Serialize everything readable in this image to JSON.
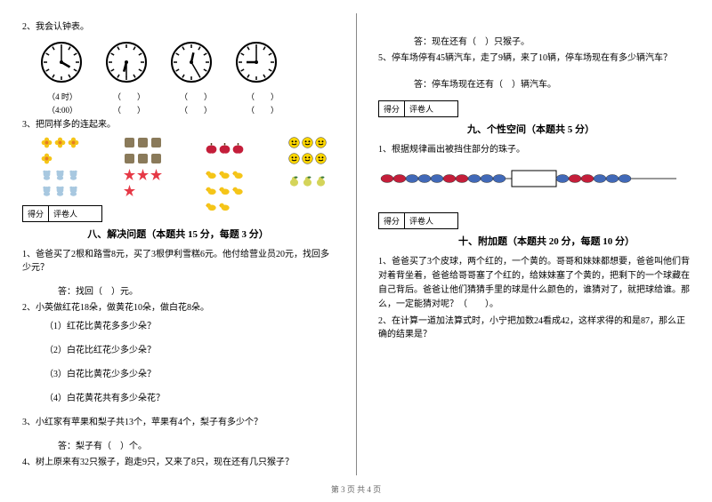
{
  "left": {
    "q2": "2、我会认钟表。",
    "clock_labels_1": [
      "（4 时）",
      "（　　）",
      "（　　）",
      "（　　）"
    ],
    "clock_labels_2": [
      "（4:00）",
      "（　　）",
      "（　　）",
      "（　　）"
    ],
    "q3": "3、把同样多的连起来。",
    "score_label_1": "得分",
    "score_label_2": "评卷人",
    "section8": "八、解决问题（本题共 15 分，每题 3 分）",
    "s8q1": "1、爸爸买了2根和路雪8元，买了3根伊利雪糕6元。他付给营业员20元，找回多少元？",
    "s8a1": "答：找回（　）元。",
    "s8q2": "2、小英做红花18朵，做黄花10朵，做白花8朵。",
    "s8q2_1": "（1）红花比黄花多多少朵？",
    "s8q2_2": "（2）白花比红花少多少朵？",
    "s8q2_3": "（3）白花比黄花少多少朵？",
    "s8q2_4": "（4）白花黄花共有多少朵花？",
    "s8q3": "3、小红家有苹果和梨子共13个，苹果有4个，梨子有多少个？",
    "s8a3": "答：梨子有（　）个。",
    "s8q4": "4、树上原来有32只猴子，跑走9只，又来了8只，现在还有几只猴子？"
  },
  "right": {
    "a4": "答：现在还有（　）只猴子。",
    "s8q5": "5、停车场停有45辆汽车，走了9辆，来了10辆，停车场现在有多少辆汽车？",
    "a5": "答：停车场现在还有（　）辆汽车。",
    "score_label_1": "得分",
    "score_label_2": "评卷人",
    "section9": "九、个性空间（本题共 5 分）",
    "s9q1": "1、根据规律画出被挡住部分的珠子。",
    "section10": "十、附加题（本题共 20 分，每题 10 分）",
    "s10q1": "1、爸爸买了3个皮球，两个红的，一个黄的。哥哥和妹妹都想要，爸爸叫他们背对着背坐着，爸爸给哥哥塞了个红的，给妹妹塞了个黄的，把剩下的一个球藏在自己背后。爸爸让他们猜猜手里的球是什么颜色的，谁猜对了，就把球给谁。那么，一定能猜对呢？（　　）。",
    "s10q2": "2、在计算一道加法算式时，小宁把加数24看成42，这样求得的和是87，那么正确的结果是？"
  },
  "footer": "第 3 页 共 4 页",
  "clocks": {
    "radius": 22,
    "stroke": "#000000",
    "face": "#ffffff",
    "times": [
      {
        "h": 4,
        "m": 0
      },
      {
        "h": 6,
        "m": 30
      },
      {
        "h": 12,
        "m": 25
      },
      {
        "h": 9,
        "m": 0
      }
    ]
  },
  "objects": {
    "row1": [
      {
        "shape": "flower",
        "color": "#f5c518",
        "count": 4
      },
      {
        "shape": "figure",
        "color": "#8a7a5a",
        "count": 6
      },
      {
        "shape": "apple",
        "color": "#c41e3a",
        "count": 3
      },
      {
        "shape": "smiley",
        "color": "#ffd700",
        "count": 6
      }
    ],
    "row2": [
      {
        "shape": "bear",
        "color": "#a8c8e0",
        "count": 6
      },
      {
        "shape": "star",
        "color": "#e63946",
        "count": 4
      },
      {
        "shape": "duck",
        "color": "#f5c518",
        "count": 8
      },
      {
        "shape": "pear",
        "color": "#d4d45a",
        "count": 3
      }
    ]
  },
  "beads": {
    "colors": [
      "#c41e3a",
      "#c41e3a",
      "#4169b8",
      "#4169b8",
      "#4169b8",
      "#c41e3a",
      "#c41e3a",
      "#4169b8",
      "#4169b8",
      "#4169b8"
    ],
    "after_box": [
      "#4169b8",
      "#c41e3a",
      "#c41e3a",
      "#4169b8",
      "#4169b8",
      "#4169b8"
    ],
    "bead_w": 14,
    "bead_h": 9
  }
}
